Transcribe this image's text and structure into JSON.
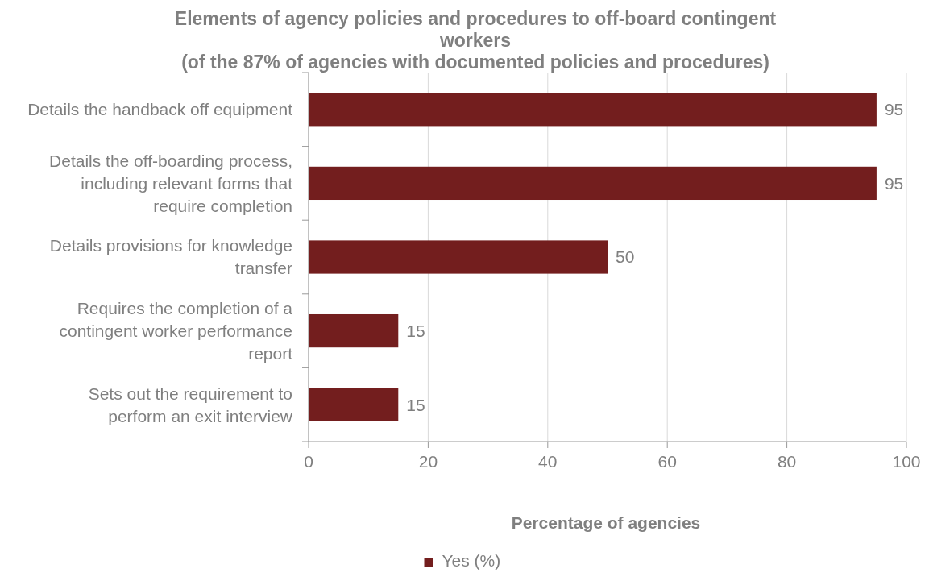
{
  "chart_data": {
    "type": "bar",
    "orientation": "horizontal",
    "title": "Elements of agency policies and procedures to off-board contingent workers",
    "subtitle": "(of the 87% of agencies with documented policies and procedures)",
    "xlabel": "Percentage of agencies",
    "categories": [
      "Details the handback off equipment",
      "Details the off-boarding process, including relevant forms that require completion",
      "Details provisions for knowledge transfer",
      "Requires the completion of a contingent worker performance report",
      "Sets out the requirement to perform an exit interview"
    ],
    "series": [
      {
        "name": "Yes (%)",
        "color": "#731e1e",
        "values": [
          95,
          95,
          50,
          15,
          15
        ]
      }
    ],
    "xlim": [
      0,
      100
    ],
    "xticks": [
      0,
      20,
      40,
      60,
      80,
      100
    ],
    "grid": "x",
    "data_labels": true,
    "legend": "bottom"
  }
}
